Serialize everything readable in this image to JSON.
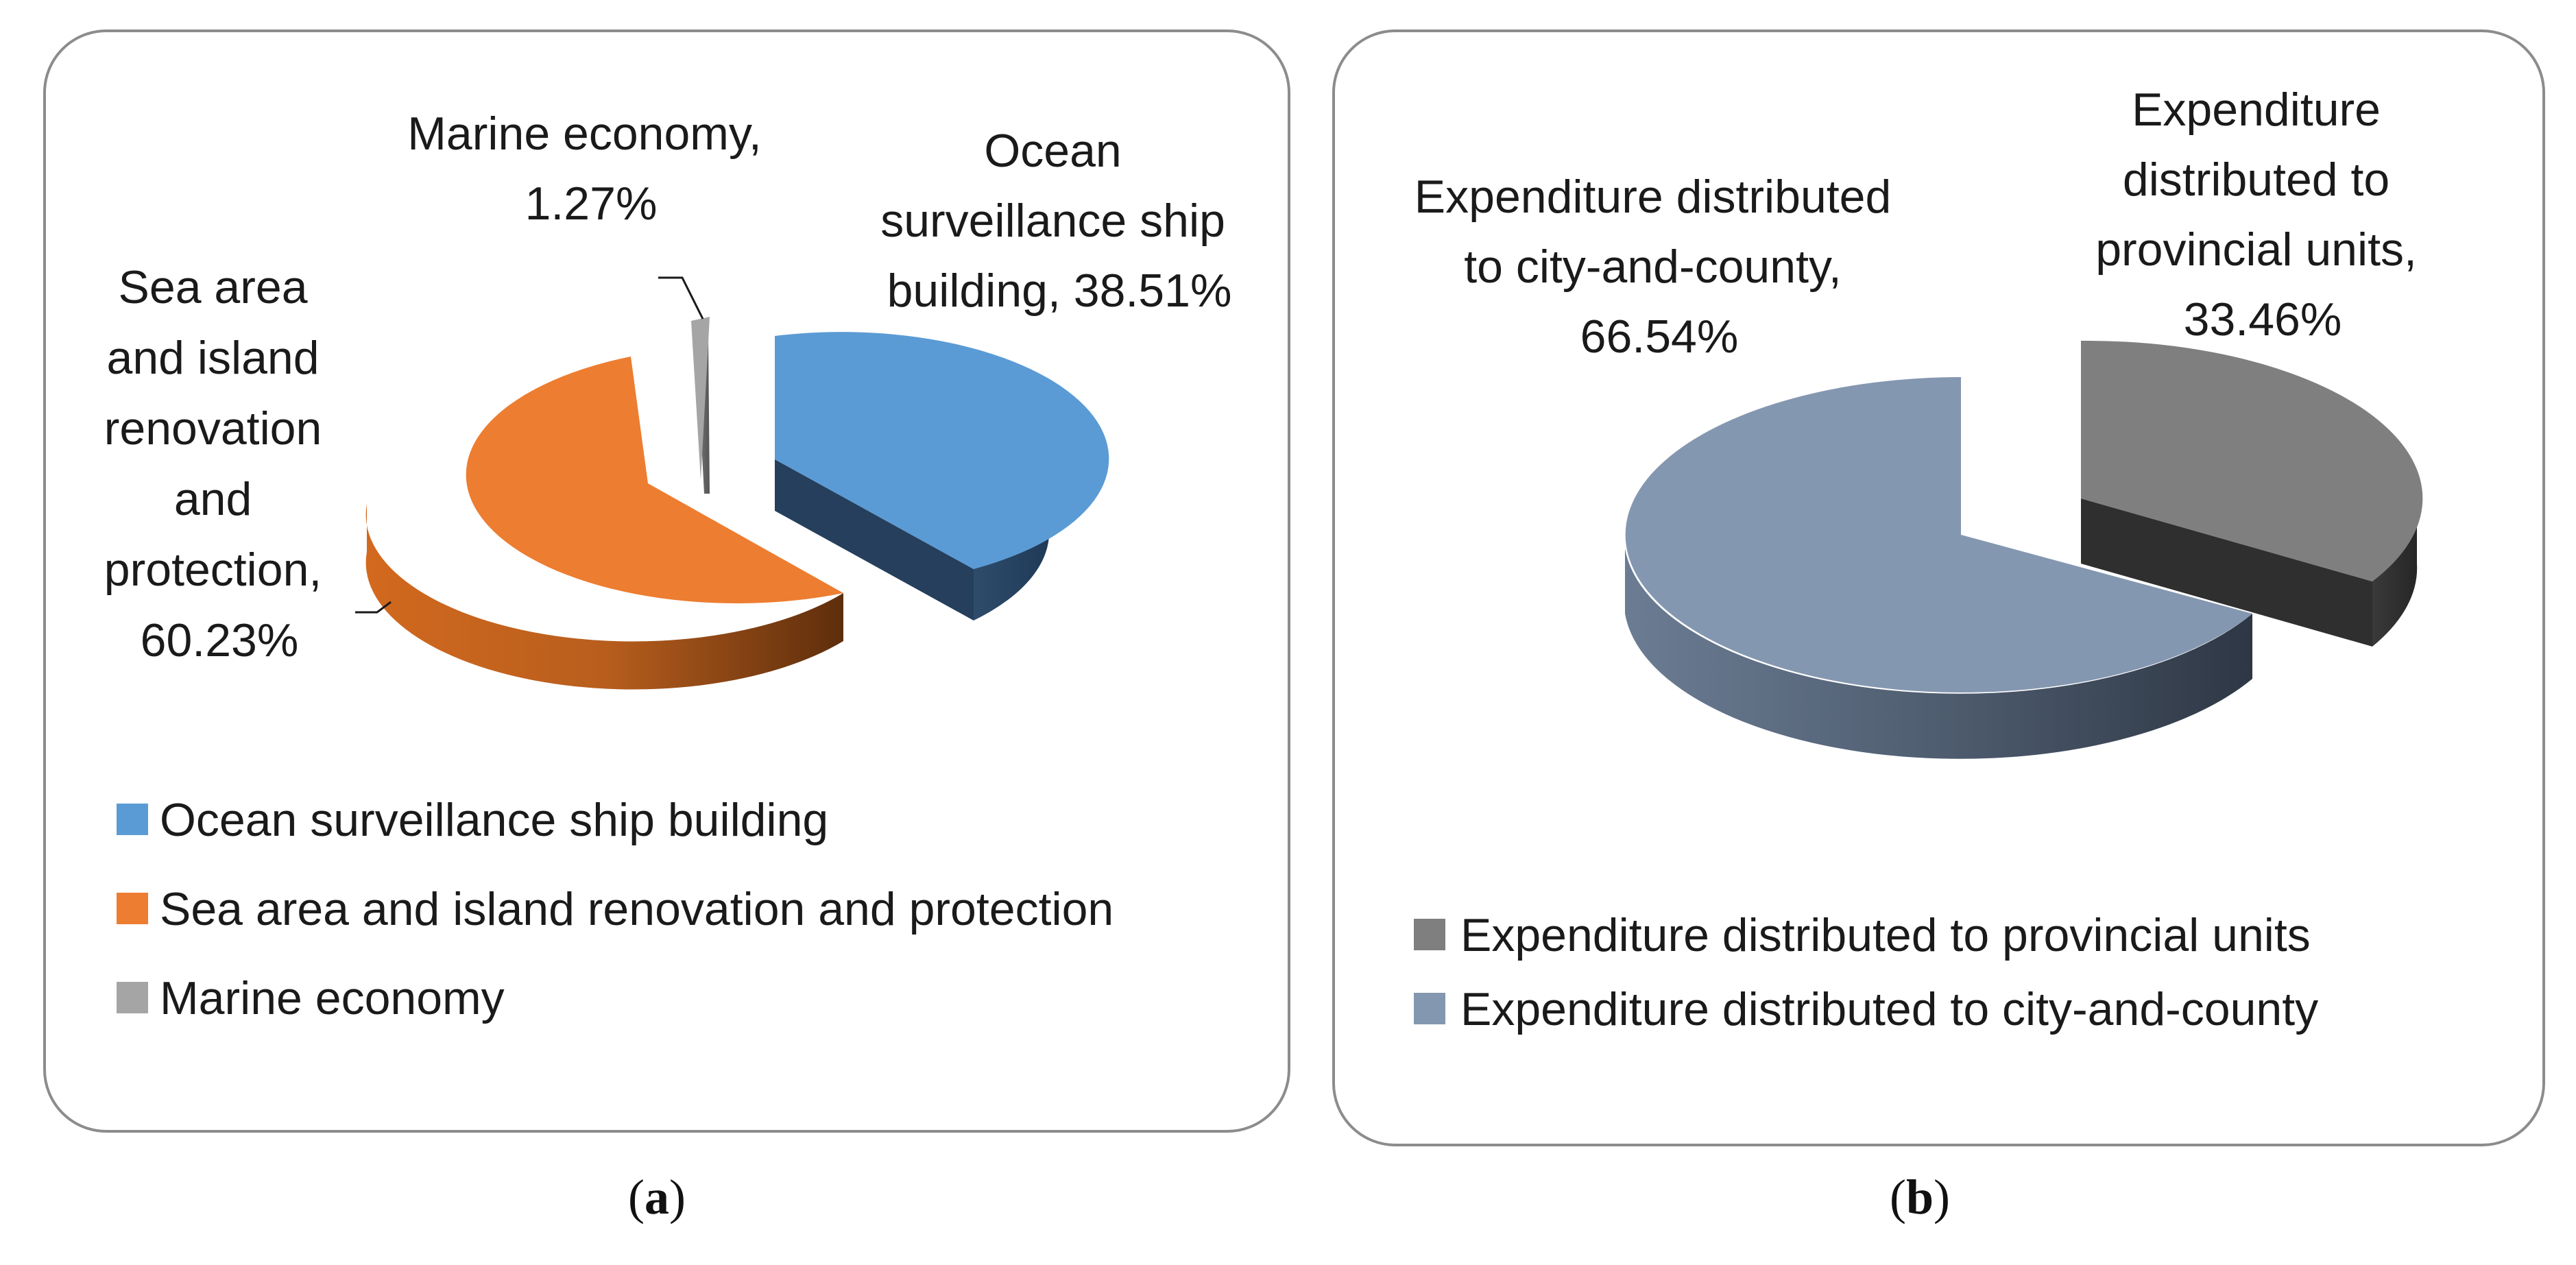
{
  "chart_data": [
    {
      "type": "pie",
      "style": "3d-exploded",
      "panel_label": "a",
      "legend_position": "bottom-left",
      "labels": [
        "Ocean surveillance ship building",
        "Sea area and island renovation and protection",
        "Marine economy"
      ],
      "values": [
        38.51,
        60.23,
        1.27
      ],
      "colors": [
        "#5b9bd5",
        "#ed7d31",
        "#a5a5a5"
      ],
      "data_labels": [
        [
          "Ocean",
          "surveillance ship",
          "building, 38.51%"
        ],
        [
          "Sea area",
          "and island",
          "renovation",
          "and",
          "protection,",
          "60.23%"
        ],
        [
          "Marine economy,",
          "1.27%"
        ]
      ],
      "legend": [
        "Ocean surveillance ship building",
        "Sea area and island renovation and protection",
        "Marine economy"
      ]
    },
    {
      "type": "pie",
      "style": "3d-exploded",
      "panel_label": "b",
      "legend_position": "bottom",
      "labels": [
        "Expenditure distributed to provincial units",
        "Expenditure distributed to city-and-county"
      ],
      "values": [
        33.46,
        66.54
      ],
      "colors": [
        "#7f7f7f",
        "#8497b0"
      ],
      "data_labels": [
        [
          "Expenditure",
          "distributed to",
          "provincial units,",
          "33.46%"
        ],
        [
          "Expenditure distributed",
          "to city-and-county,",
          "66.54%"
        ]
      ],
      "legend": [
        "Expenditure distributed to provincial units",
        "Expenditure distributed to city-and-county"
      ]
    }
  ]
}
